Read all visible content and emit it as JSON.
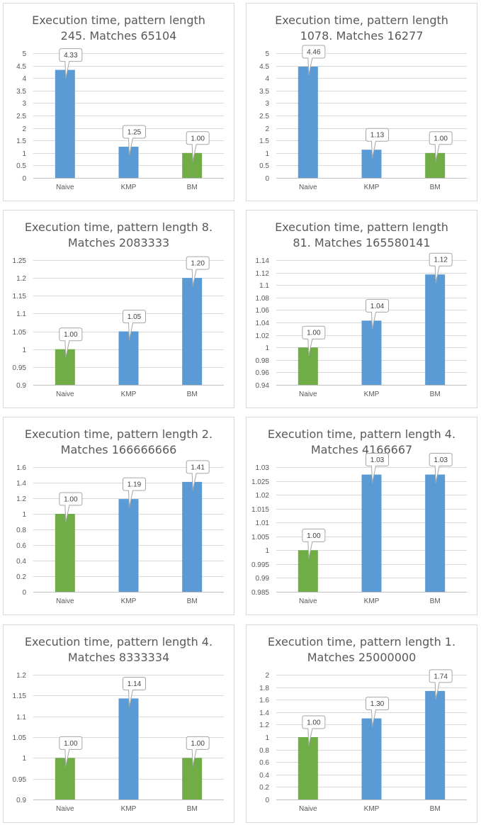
{
  "colors": {
    "blue": "#5b9bd5",
    "green": "#70ad47"
  },
  "chart_data": [
    {
      "type": "bar",
      "title_lines": [
        "Execution time, pattern length",
        "245. Matches 65104"
      ],
      "categories": [
        "Naive",
        "KMP",
        "BM"
      ],
      "values": [
        4.33,
        1.25,
        1.0
      ],
      "data_labels": [
        "4.33",
        "1.25",
        "1.00"
      ],
      "bar_colors": [
        "blue",
        "blue",
        "green"
      ],
      "ylim": [
        0,
        5
      ],
      "yticks": [
        "0",
        "0.5",
        "1",
        "1.5",
        "2",
        "2.5",
        "3",
        "3.5",
        "4",
        "4.5",
        "5"
      ],
      "grid": true
    },
    {
      "type": "bar",
      "title_lines": [
        "Execution time, pattern length",
        "1078. Matches 16277"
      ],
      "categories": [
        "Naive",
        "KMP",
        "BM"
      ],
      "values": [
        4.46,
        1.13,
        1.0
      ],
      "data_labels": [
        "4.46",
        "1.13",
        "1.00"
      ],
      "bar_colors": [
        "blue",
        "blue",
        "green"
      ],
      "ylim": [
        0,
        5
      ],
      "yticks": [
        "0",
        "0.5",
        "1",
        "1.5",
        "2",
        "2.5",
        "3",
        "3.5",
        "4",
        "4.5",
        "5"
      ],
      "grid": true
    },
    {
      "type": "bar",
      "title_lines": [
        "Execution time, pattern length 8.",
        "Matches 2083333"
      ],
      "categories": [
        "Naive",
        "KMP",
        "BM"
      ],
      "values": [
        1.0,
        1.05,
        1.2
      ],
      "data_labels": [
        "1.00",
        "1.05",
        "1.20"
      ],
      "bar_colors": [
        "green",
        "blue",
        "blue"
      ],
      "ylim": [
        0.9,
        1.25
      ],
      "yticks": [
        "0.9",
        "0.95",
        "1",
        "1.05",
        "1.1",
        "1.15",
        "1.2",
        "1.25"
      ],
      "grid": true
    },
    {
      "type": "bar",
      "title_lines": [
        "Execution time, pattern length",
        "81. Matches 165580141"
      ],
      "categories": [
        "Naive",
        "KMP",
        "BM"
      ],
      "values": [
        1.0,
        1.043,
        1.117
      ],
      "data_labels": [
        "1.00",
        "1.04",
        "1.12"
      ],
      "bar_colors": [
        "green",
        "blue",
        "blue"
      ],
      "ylim": [
        0.94,
        1.14
      ],
      "yticks": [
        "0.94",
        "0.96",
        "0.98",
        "1",
        "1.02",
        "1.04",
        "1.06",
        "1.08",
        "1.1",
        "1.12",
        "1.14"
      ],
      "grid": true
    },
    {
      "type": "bar",
      "title_lines": [
        "Execution time, pattern length 2.",
        "Matches 166666666"
      ],
      "categories": [
        "Naive",
        "KMP",
        "BM"
      ],
      "values": [
        1.0,
        1.19,
        1.41
      ],
      "data_labels": [
        "1.00",
        "1.19",
        "1.41"
      ],
      "bar_colors": [
        "green",
        "blue",
        "blue"
      ],
      "ylim": [
        0,
        1.6
      ],
      "yticks": [
        "0",
        "0.2",
        "0.4",
        "0.6",
        "0.8",
        "1",
        "1.2",
        "1.4",
        "1.6"
      ],
      "grid": true
    },
    {
      "type": "bar",
      "title_lines": [
        "Execution time, pattern length 4.",
        "Matches 4166667"
      ],
      "categories": [
        "Naive",
        "KMP",
        "BM"
      ],
      "values": [
        1.0,
        1.0273,
        1.0273
      ],
      "data_labels": [
        "1.00",
        "1.03",
        "1.03"
      ],
      "bar_colors": [
        "green",
        "blue",
        "blue"
      ],
      "ylim": [
        0.985,
        1.03
      ],
      "yticks": [
        "0.985",
        "0.99",
        "0.995",
        "1",
        "1.005",
        "1.01",
        "1.015",
        "1.02",
        "1.025",
        "1.03"
      ],
      "grid": true
    },
    {
      "type": "bar",
      "title_lines": [
        "Execution time, pattern length 4.",
        "Matches 8333334"
      ],
      "categories": [
        "Naive",
        "KMP",
        "BM"
      ],
      "values": [
        1.0,
        1.143,
        1.0
      ],
      "data_labels": [
        "1.00",
        "1.14",
        "1.00"
      ],
      "bar_colors": [
        "green",
        "blue",
        "green"
      ],
      "ylim": [
        0.9,
        1.2
      ],
      "yticks": [
        "0.9",
        "0.95",
        "1",
        "1.05",
        "1.1",
        "1.15",
        "1.2"
      ],
      "grid": true
    },
    {
      "type": "bar",
      "title_lines": [
        "Execution time, pattern length 1.",
        "Matches 25000000"
      ],
      "categories": [
        "Naive",
        "KMP",
        "BM"
      ],
      "values": [
        1.0,
        1.3,
        1.74
      ],
      "data_labels": [
        "1.00",
        "1.30",
        "1.74"
      ],
      "bar_colors": [
        "green",
        "blue",
        "blue"
      ],
      "ylim": [
        0,
        2
      ],
      "yticks": [
        "0",
        "0.2",
        "0.4",
        "0.6",
        "0.8",
        "1",
        "1.2",
        "1.4",
        "1.6",
        "1.8",
        "2"
      ],
      "grid": true
    }
  ]
}
